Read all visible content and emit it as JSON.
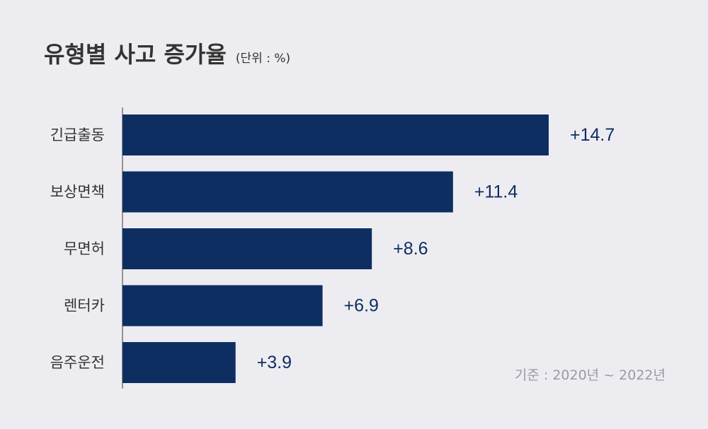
{
  "title": "유형별 사고 증가율",
  "unit": "(단위 : %)",
  "source": "기준 : 2020년 ~ 2022년",
  "colors": {
    "bar": "#0e2e62",
    "label": "#0e2e62",
    "category": "#333333",
    "axis": "#777777"
  },
  "chart_data": {
    "type": "bar",
    "orientation": "horizontal",
    "categories": [
      "긴급출동",
      "보상면책",
      "무면허",
      "렌터카",
      "음주운전"
    ],
    "values": [
      14.7,
      11.4,
      8.6,
      6.9,
      3.9
    ],
    "value_labels": [
      "+14.7",
      "+11.4",
      "+8.6",
      "+6.9",
      "+3.9"
    ],
    "xlim": [
      0,
      15
    ],
    "grid": false,
    "legend": "none"
  }
}
